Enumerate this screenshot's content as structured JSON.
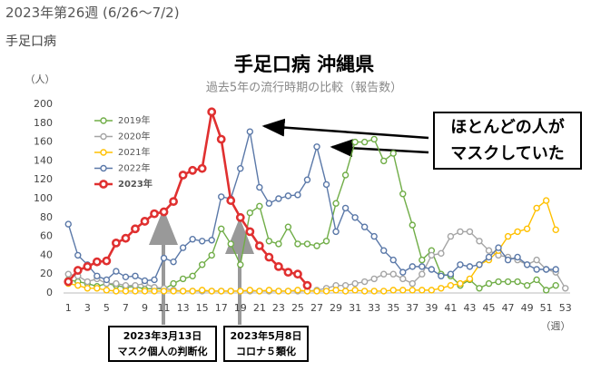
{
  "header": {
    "title": "2023年第26週 (6/26〜7/2)",
    "subtitle": "手足口病"
  },
  "chart_data": {
    "type": "line",
    "title": "手足口病 沖縄県",
    "subtitle": "過去5年の流行時期の比較（報告数）",
    "ylabel": "（人）",
    "xlabel": "（週）",
    "x": [
      1,
      2,
      3,
      4,
      5,
      6,
      7,
      8,
      9,
      10,
      11,
      12,
      13,
      14,
      15,
      16,
      17,
      18,
      19,
      20,
      21,
      22,
      23,
      24,
      25,
      26,
      27,
      28,
      29,
      30,
      31,
      32,
      33,
      34,
      35,
      36,
      37,
      38,
      39,
      40,
      41,
      42,
      43,
      44,
      45,
      46,
      47,
      48,
      49,
      50,
      51,
      52,
      53
    ],
    "xlim": [
      0.5,
      53.5
    ],
    "xticks": [
      1,
      3,
      5,
      7,
      9,
      11,
      13,
      15,
      17,
      19,
      21,
      23,
      25,
      27,
      29,
      31,
      33,
      35,
      37,
      39,
      41,
      43,
      45,
      47,
      49,
      51,
      53
    ],
    "ylim": [
      0,
      200
    ],
    "yticks": [
      0,
      20,
      40,
      60,
      80,
      100,
      120,
      140,
      160,
      180,
      200
    ],
    "grid": false,
    "series": [
      {
        "name": "2019年",
        "color": "#70ad47",
        "values": [
          14,
          12,
          10,
          7,
          10,
          8,
          6,
          7,
          4,
          5,
          4,
          10,
          15,
          18,
          30,
          40,
          68,
          52,
          30,
          85,
          92,
          55,
          52,
          70,
          52,
          52,
          50,
          55,
          95,
          125,
          160,
          160,
          163,
          140,
          148,
          105,
          72,
          35,
          45,
          20,
          18,
          8,
          14,
          5,
          10,
          12,
          12,
          12,
          8,
          14,
          3,
          8,
          null
        ]
      },
      {
        "name": "2020年",
        "color": "#a5a5a5",
        "values": [
          20,
          18,
          12,
          15,
          10,
          10,
          8,
          8,
          10,
          6,
          5,
          3,
          2,
          2,
          2,
          2,
          2,
          2,
          2,
          2,
          2,
          2,
          2,
          2,
          2,
          2,
          3,
          5,
          8,
          8,
          10,
          12,
          15,
          20,
          20,
          15,
          10,
          20,
          40,
          42,
          60,
          65,
          65,
          55,
          45,
          40,
          38,
          35,
          30,
          35,
          25,
          22,
          5
        ]
      },
      {
        "name": "2021年",
        "color": "#ffc000",
        "values": [
          10,
          8,
          5,
          5,
          3,
          2,
          2,
          2,
          2,
          2,
          2,
          2,
          2,
          2,
          3,
          2,
          2,
          2,
          2,
          3,
          2,
          3,
          2,
          2,
          3,
          2,
          2,
          2,
          3,
          2,
          3,
          2,
          2,
          2,
          3,
          3,
          3,
          3,
          3,
          5,
          8,
          10,
          15,
          30,
          35,
          45,
          60,
          65,
          68,
          90,
          98,
          67,
          null
        ]
      },
      {
        "name": "2022年",
        "color": "#5a78a8",
        "values": [
          73,
          40,
          30,
          18,
          14,
          23,
          17,
          18,
          13,
          14,
          37,
          33,
          48,
          57,
          55,
          56,
          102,
          100,
          132,
          171,
          112,
          95,
          100,
          103,
          104,
          120,
          155,
          115,
          65,
          90,
          80,
          70,
          60,
          45,
          35,
          22,
          28,
          28,
          25,
          18,
          20,
          30,
          28,
          30,
          38,
          48,
          35,
          38,
          30,
          25,
          25,
          25,
          null
        ]
      },
      {
        "name": "2023年",
        "color": "#e03030",
        "values": [
          12,
          24,
          28,
          33,
          34,
          53,
          58,
          68,
          76,
          84,
          86,
          97,
          125,
          130,
          132,
          192,
          163,
          98,
          80,
          65,
          50,
          38,
          28,
          22,
          20,
          8,
          null,
          null,
          null,
          null,
          null,
          null,
          null,
          null,
          null,
          null,
          null,
          null,
          null,
          null,
          null,
          null,
          null,
          null,
          null,
          null,
          null,
          null,
          null,
          null,
          null,
          null,
          null
        ]
      }
    ],
    "annotations": [
      {
        "lines": [
          "ほとんどの人が",
          "マスクしていた"
        ]
      },
      {
        "lines": [
          "2023年3月13日",
          "マスク個人の判断化"
        ]
      },
      {
        "lines": [
          "2023年5月8日",
          "コロナ５類化"
        ]
      }
    ]
  }
}
